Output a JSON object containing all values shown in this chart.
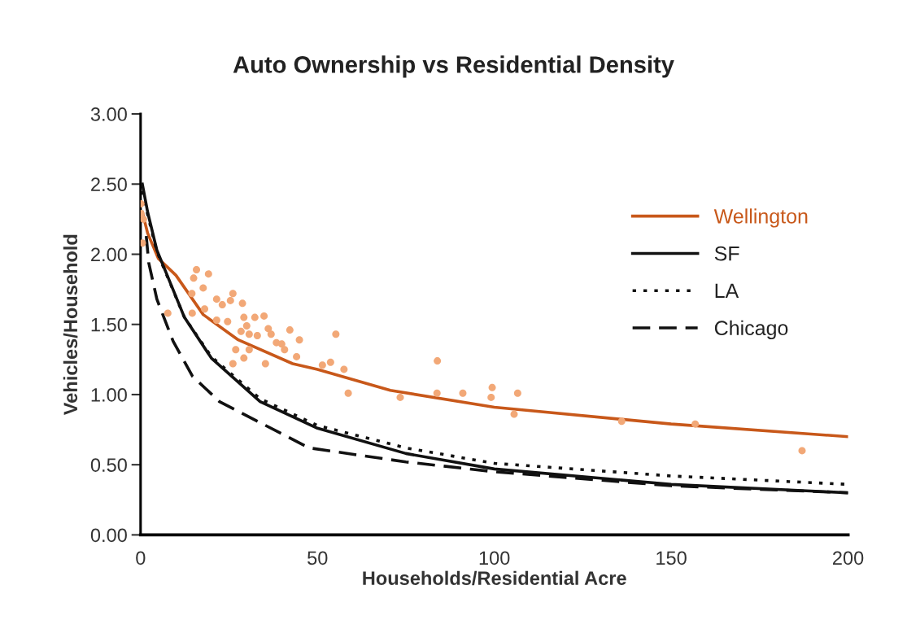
{
  "chart_data": {
    "type": "line",
    "title": "Auto Ownership vs Residential Density",
    "xlabel": "Households/Residential Acre",
    "ylabel": "Vehicles/Household",
    "xlim": [
      0,
      200
    ],
    "xticks": [
      0,
      50,
      100,
      150,
      200
    ],
    "ylim": [
      0,
      3
    ],
    "yticks": [
      {
        "value": 0,
        "label": "0.00"
      },
      {
        "value": 0.5,
        "label": "0.50"
      },
      {
        "value": 1,
        "label": "1.00"
      },
      {
        "value": 1.5,
        "label": "1.50"
      },
      {
        "value": 2,
        "label": "2.00"
      },
      {
        "value": 2.5,
        "label": "2.50"
      },
      {
        "value": 3,
        "label": "3.00"
      }
    ],
    "legend": "right",
    "grid": false,
    "series": [
      {
        "type": "scatter",
        "color": "#f2a877",
        "marker": "circle",
        "x": [
          0.1,
          0.1,
          0.8,
          0.5,
          15.8,
          19.2,
          15.0,
          17.7,
          14.5,
          7.7,
          26.1,
          21.5,
          25.4,
          23.1,
          28.8,
          18.1,
          14.6,
          21.5,
          24.6,
          29.2,
          32.3,
          34.9,
          30.0,
          28.4,
          30.7,
          33.0,
          36.1,
          36.9,
          42.2,
          44.9,
          55.2,
          38.4,
          39.9,
          40.7,
          26.9,
          30.7,
          29.2,
          26.1,
          35.3,
          44.1,
          51.4,
          53.7,
          57.5,
          58.7,
          73.4,
          83.9,
          83.8,
          91.1,
          99.4,
          99.1,
          106.6,
          105.6,
          136.0,
          156.8,
          187.0
        ],
        "values": [
          2.36,
          2.29,
          2.25,
          2.08,
          1.89,
          1.86,
          1.83,
          1.76,
          1.72,
          1.58,
          1.72,
          1.68,
          1.67,
          1.64,
          1.65,
          1.61,
          1.58,
          1.53,
          1.52,
          1.55,
          1.55,
          1.56,
          1.49,
          1.45,
          1.43,
          1.42,
          1.47,
          1.43,
          1.46,
          1.39,
          1.43,
          1.37,
          1.36,
          1.32,
          1.32,
          1.32,
          1.26,
          1.22,
          1.22,
          1.27,
          1.21,
          1.23,
          1.18,
          1.01,
          0.98,
          1.24,
          1.01,
          1.01,
          1.05,
          0.98,
          1.01,
          0.86,
          0.81,
          0.79,
          0.6
        ]
      },
      {
        "name": "Wellington",
        "color": "#c8581a",
        "line_style": "solid",
        "x": [
          0.5,
          2,
          5,
          10,
          17.7,
          27.6,
          43,
          50,
          70.6,
          100,
          150,
          200
        ],
        "values": [
          2.3,
          2.15,
          1.97,
          1.85,
          1.57,
          1.39,
          1.22,
          1.18,
          1.03,
          0.91,
          0.79,
          0.7
        ]
      },
      {
        "name": "SF",
        "color": "#111111",
        "line_style": "solid",
        "x": [
          0.5,
          2,
          4.6,
          12.4,
          20,
          33.8,
          50,
          75,
          100,
          150,
          200
        ],
        "values": [
          2.5,
          2.3,
          2.03,
          1.55,
          1.26,
          0.95,
          0.76,
          0.58,
          0.47,
          0.36,
          0.3
        ]
      },
      {
        "name": "LA",
        "color": "#111111",
        "line_style": "dotted",
        "x": [
          0.5,
          2,
          4.6,
          12.4,
          20,
          33.8,
          50,
          75,
          100,
          150,
          200
        ],
        "values": [
          2.45,
          2.28,
          2.02,
          1.55,
          1.27,
          0.97,
          0.78,
          0.62,
          0.51,
          0.42,
          0.36
        ]
      },
      {
        "name": "Chicago",
        "color": "#111111",
        "line_style": "dashed",
        "x": [
          1.6,
          2.3,
          4.6,
          9.2,
          14.7,
          22.3,
          47.6,
          75,
          100,
          150,
          200
        ],
        "values": [
          2.13,
          1.94,
          1.68,
          1.38,
          1.13,
          0.95,
          0.62,
          0.52,
          0.45,
          0.35,
          0.3
        ]
      }
    ]
  }
}
